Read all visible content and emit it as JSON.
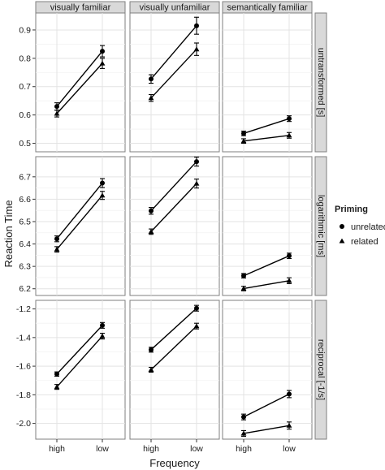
{
  "chart_data": {
    "type": "line",
    "xlabel": "Frequency",
    "ylabel": "Reaction Time",
    "categories": [
      "high",
      "low"
    ],
    "columns": [
      "visually familiar",
      "visually unfamiliar",
      "semantically familiar"
    ],
    "legend": {
      "title": "Priming",
      "placement": "right",
      "entries": [
        {
          "name": "unrelated",
          "marker": "circle"
        },
        {
          "name": "related",
          "marker": "triangle"
        }
      ]
    },
    "rows": [
      {
        "label": "untransformed [s]",
        "ylim": [
          0.47,
          0.96
        ],
        "yticks": [
          0.5,
          0.6,
          0.7,
          0.8,
          0.9
        ],
        "ytick_labels": [
          "0.5",
          "0.6",
          "0.7",
          "0.8",
          "0.9"
        ],
        "panels": [
          {
            "series": [
              {
                "name": "unrelated",
                "values": [
                  0.63,
                  0.825
                ],
                "err": [
                  0.013,
                  0.02
                ]
              },
              {
                "name": "related",
                "values": [
                  0.605,
                  0.782
                ],
                "err": [
                  0.012,
                  0.018
                ]
              }
            ]
          },
          {
            "series": [
              {
                "name": "unrelated",
                "values": [
                  0.727,
                  0.915
                ],
                "err": [
                  0.015,
                  0.03
                ]
              },
              {
                "name": "related",
                "values": [
                  0.66,
                  0.832
                ],
                "err": [
                  0.012,
                  0.022
                ]
              }
            ]
          },
          {
            "series": [
              {
                "name": "unrelated",
                "values": [
                  0.535,
                  0.587
                ],
                "err": [
                  0.008,
                  0.01
                ]
              },
              {
                "name": "related",
                "values": [
                  0.508,
                  0.528
                ],
                "err": [
                  0.008,
                  0.01
                ]
              }
            ]
          }
        ]
      },
      {
        "label": "logarithmic [ms]",
        "ylim": [
          6.17,
          6.79
        ],
        "yticks": [
          6.2,
          6.3,
          6.4,
          6.5,
          6.6,
          6.7
        ],
        "ytick_labels": [
          "6.2",
          "6.3",
          "6.4",
          "6.5",
          "6.6",
          "6.7"
        ],
        "panels": [
          {
            "series": [
              {
                "name": "unrelated",
                "values": [
                  6.423,
                  6.672
                ],
                "err": [
                  0.013,
                  0.02
                ]
              },
              {
                "name": "related",
                "values": [
                  6.376,
                  6.617
                ],
                "err": [
                  0.012,
                  0.018
                ]
              }
            ]
          },
          {
            "series": [
              {
                "name": "unrelated",
                "values": [
                  6.548,
                  6.768
                ],
                "err": [
                  0.015,
                  0.02
                ]
              },
              {
                "name": "related",
                "values": [
                  6.455,
                  6.67
                ],
                "err": [
                  0.012,
                  0.02
                ]
              }
            ]
          },
          {
            "series": [
              {
                "name": "unrelated",
                "values": [
                  6.258,
                  6.347
                ],
                "err": [
                  0.01,
                  0.012
                ]
              },
              {
                "name": "related",
                "values": [
                  6.201,
                  6.236
                ],
                "err": [
                  0.01,
                  0.013
                ]
              }
            ]
          }
        ]
      },
      {
        "label": "reciprocal [-1/s]",
        "ylim": [
          -2.11,
          -1.14
        ],
        "yticks": [
          -2.0,
          -1.8,
          -1.6,
          -1.4,
          -1.2
        ],
        "ytick_labels": [
          "-2.0",
          "-1.8",
          "-1.6",
          "-1.4",
          "-1.2"
        ],
        "panels": [
          {
            "series": [
              {
                "name": "unrelated",
                "values": [
                  -1.655,
                  -1.315
                ],
                "err": [
                  0.015,
                  0.02
                ]
              },
              {
                "name": "related",
                "values": [
                  -1.745,
                  -1.39
                ],
                "err": [
                  0.017,
                  0.02
                ]
              }
            ]
          },
          {
            "series": [
              {
                "name": "unrelated",
                "values": [
                  -1.485,
                  -1.195
                ],
                "err": [
                  0.017,
                  0.02
                ]
              },
              {
                "name": "related",
                "values": [
                  -1.625,
                  -1.32
                ],
                "err": [
                  0.017,
                  0.02
                ]
              }
            ]
          },
          {
            "series": [
              {
                "name": "unrelated",
                "values": [
                  -1.955,
                  -1.795
                ],
                "err": [
                  0.02,
                  0.025
                ]
              },
              {
                "name": "related",
                "values": [
                  -2.07,
                  -2.015
                ],
                "err": [
                  0.02,
                  0.025
                ]
              }
            ]
          }
        ]
      }
    ]
  }
}
